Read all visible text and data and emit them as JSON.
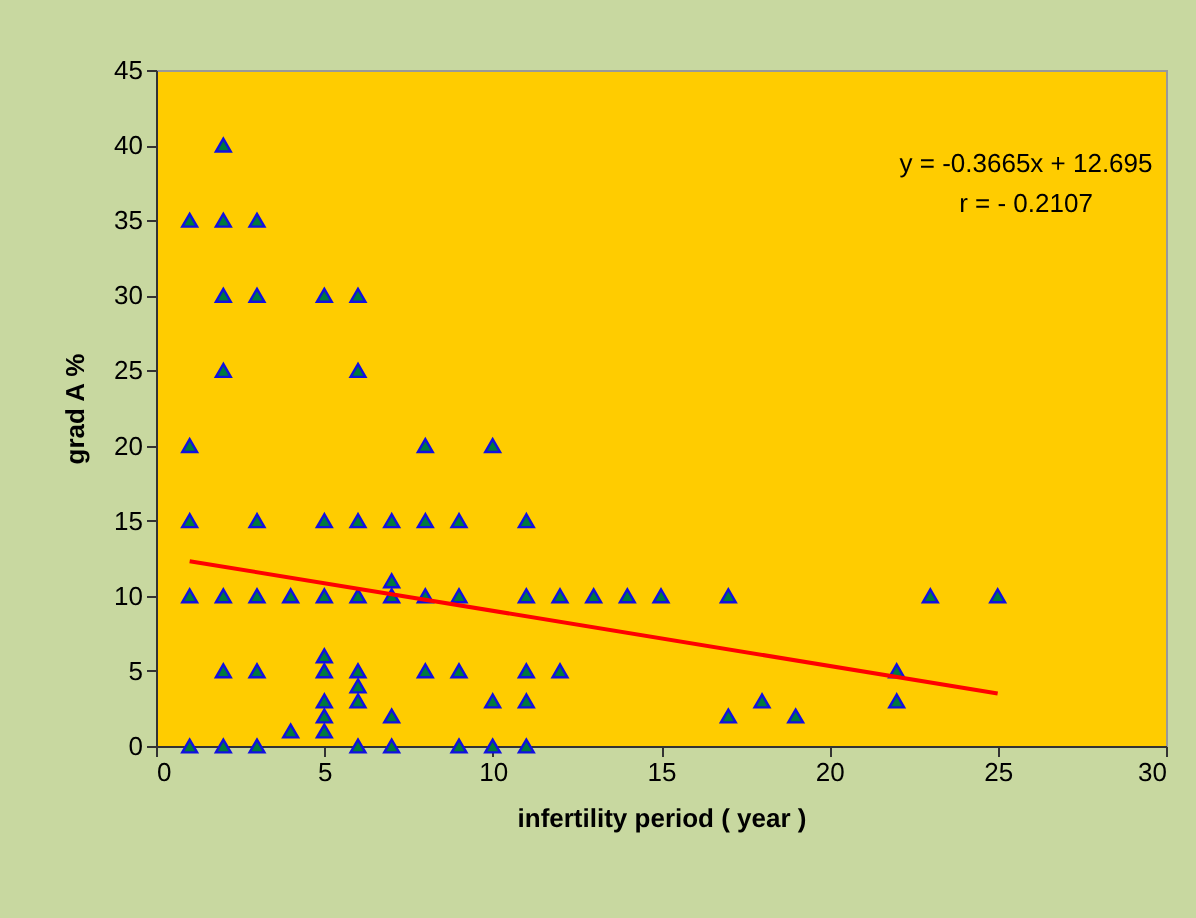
{
  "chart_data": {
    "type": "scatter",
    "xlabel": "infertility period ( year )",
    "ylabel": "grad A %",
    "annotations": [
      "y = -0.3665x + 12.695",
      "r = - 0.2107"
    ],
    "xlim": [
      0,
      30
    ],
    "xticks": [
      0,
      5,
      10,
      15,
      20,
      25,
      30
    ],
    "ylim": [
      0,
      45
    ],
    "yticks": [
      0,
      5,
      10,
      15,
      20,
      25,
      30,
      35,
      40,
      45
    ],
    "grid": false,
    "marker": "triangle",
    "series": [
      {
        "type": "scatter",
        "color": "#007a3d",
        "x": [
          1,
          1,
          1,
          1,
          1,
          2,
          2,
          2,
          2,
          2,
          2,
          2,
          3,
          3,
          3,
          3,
          3,
          3,
          4,
          4,
          5,
          5,
          5,
          5,
          5,
          5,
          5,
          5,
          6,
          6,
          6,
          6,
          6,
          6,
          6,
          6,
          7,
          7,
          7,
          7,
          7,
          8,
          8,
          8,
          8,
          9,
          9,
          9,
          9,
          10,
          10,
          10,
          11,
          11,
          11,
          11,
          11,
          12,
          12,
          13,
          14,
          15,
          17,
          17,
          18,
          19,
          22,
          22,
          23,
          25
        ],
        "values": [
          35,
          20,
          15,
          10,
          0,
          40,
          35,
          30,
          25,
          10,
          5,
          0,
          35,
          30,
          15,
          10,
          5,
          0,
          10,
          1,
          30,
          15,
          10,
          6,
          5,
          3,
          2,
          1,
          30,
          25,
          15,
          10,
          5,
          4,
          3,
          0,
          15,
          11,
          10,
          2,
          0,
          20,
          15,
          10,
          5,
          15,
          10,
          5,
          0,
          20,
          3,
          0,
          15,
          10,
          5,
          3,
          0,
          10,
          5,
          10,
          10,
          10,
          10,
          2,
          3,
          2,
          5,
          3,
          10,
          10
        ]
      },
      {
        "type": "line",
        "marker": "none",
        "color": "#ff0000",
        "x": [
          1,
          25
        ],
        "values": [
          12.3,
          3.5
        ]
      }
    ]
  }
}
